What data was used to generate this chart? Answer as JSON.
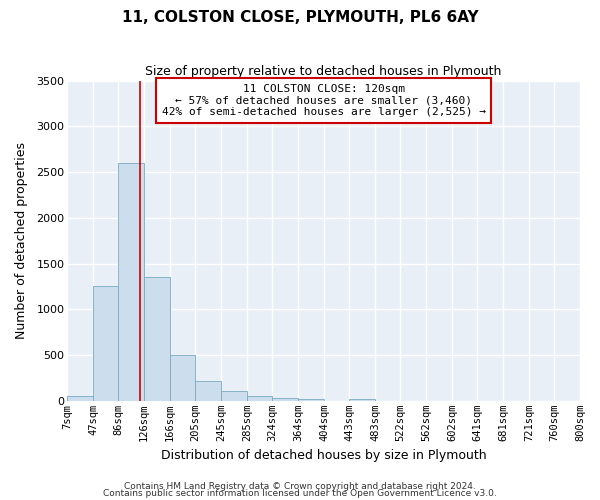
{
  "title": "11, COLSTON CLOSE, PLYMOUTH, PL6 6AY",
  "subtitle": "Size of property relative to detached houses in Plymouth",
  "xlabel": "Distribution of detached houses by size in Plymouth",
  "ylabel": "Number of detached properties",
  "bar_color": "#ccdded",
  "bar_edge_color": "#7aaabf",
  "background_color": "#e8eff6",
  "grid_color": "#ffffff",
  "vline_color": "#cc0000",
  "vline_x": 120,
  "annotation_title": "11 COLSTON CLOSE: 120sqm",
  "annotation_line1": "← 57% of detached houses are smaller (3,460)",
  "annotation_line2": "42% of semi-detached houses are larger (2,525) →",
  "footer1": "Contains HM Land Registry data © Crown copyright and database right 2024.",
  "footer2": "Contains public sector information licensed under the Open Government Licence v3.0.",
  "bins": [
    7,
    47,
    86,
    126,
    166,
    205,
    245,
    285,
    324,
    364,
    404,
    443,
    483,
    522,
    562,
    602,
    641,
    681,
    721,
    760,
    800
  ],
  "counts": [
    50,
    1250,
    2600,
    1350,
    500,
    215,
    110,
    50,
    30,
    25,
    0,
    25,
    0,
    0,
    0,
    0,
    0,
    0,
    0,
    0
  ],
  "ylim": [
    0,
    3500
  ],
  "yticks": [
    0,
    500,
    1000,
    1500,
    2000,
    2500,
    3000,
    3500
  ],
  "tick_labels": [
    "7sqm",
    "47sqm",
    "86sqm",
    "126sqm",
    "166sqm",
    "205sqm",
    "245sqm",
    "285sqm",
    "324sqm",
    "364sqm",
    "404sqm",
    "443sqm",
    "483sqm",
    "522sqm",
    "562sqm",
    "602sqm",
    "641sqm",
    "681sqm",
    "721sqm",
    "760sqm",
    "800sqm"
  ]
}
